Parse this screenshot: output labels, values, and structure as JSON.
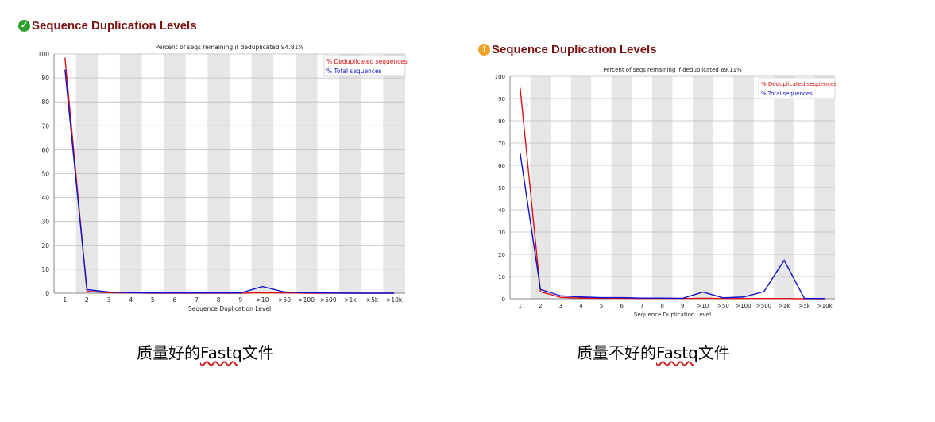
{
  "panels": [
    {
      "title": "Sequence Duplication Levels",
      "status_icon": "pass-check-icon",
      "status_color": "#2e9e2e",
      "caption_prefix": "质量好的",
      "caption_word": "Fastq",
      "caption_suffix": "文件"
    },
    {
      "title": "Sequence Duplication Levels",
      "status_icon": "warning-icon",
      "status_color": "#f0a020",
      "caption_prefix": "质量不好的",
      "caption_word": "Fastq",
      "caption_suffix": "文件"
    }
  ],
  "chart_data": [
    {
      "type": "line",
      "title": "Percent of seqs remaining if deduplicated 94.81%",
      "xlabel": "Sequence Duplication Level",
      "ylabel": "",
      "ylim": [
        0,
        100
      ],
      "yticks": [
        0,
        10,
        20,
        30,
        40,
        50,
        60,
        70,
        80,
        90,
        100
      ],
      "categories": [
        "1",
        "2",
        "3",
        "4",
        "5",
        "6",
        "7",
        "8",
        "9",
        ">10",
        ">50",
        ">100",
        ">500",
        ">1k",
        ">5k",
        ">10k"
      ],
      "grid": true,
      "legend_position": "top-right",
      "series": [
        {
          "name": "% Deduplicated sequences",
          "color": "#e01010",
          "values": [
            98.5,
            0.8,
            0.2,
            0.1,
            0,
            0,
            0,
            0,
            0,
            0.2,
            0.1,
            0,
            0,
            0,
            0,
            0
          ]
        },
        {
          "name": "% Total sequences",
          "color": "#1010d0",
          "values": [
            93.5,
            1.5,
            0.5,
            0.2,
            0.1,
            0.1,
            0.1,
            0.1,
            0.1,
            2.8,
            0.5,
            0.2,
            0.1,
            0,
            0,
            0
          ]
        }
      ]
    },
    {
      "type": "line",
      "title": "Percent of seqs remaining if deduplicated 69.11%",
      "xlabel": "Sequence Duplication Level",
      "ylabel": "",
      "ylim": [
        0,
        100
      ],
      "yticks": [
        0,
        10,
        20,
        30,
        40,
        50,
        60,
        70,
        80,
        90,
        100
      ],
      "categories": [
        "1",
        "2",
        "3",
        "4",
        "5",
        "6",
        "7",
        "8",
        "9",
        ">10",
        ">50",
        ">100",
        ">500",
        ">1k",
        ">5k",
        ">10k"
      ],
      "grid": true,
      "legend_position": "top-right",
      "series": [
        {
          "name": "% Deduplicated sequences",
          "color": "#e01010",
          "values": [
            94.8,
            3.2,
            0.6,
            0.3,
            0.2,
            0.2,
            0.1,
            0.1,
            0.1,
            0.2,
            0.1,
            0.1,
            0.1,
            0.1,
            0,
            0
          ]
        },
        {
          "name": "% Total sequences",
          "color": "#1010d0",
          "values": [
            65.5,
            4.2,
            1.3,
            0.8,
            0.5,
            0.5,
            0.3,
            0.3,
            0.2,
            3.0,
            0.4,
            0.8,
            3.2,
            17.3,
            0.1,
            0.1
          ]
        }
      ]
    }
  ]
}
